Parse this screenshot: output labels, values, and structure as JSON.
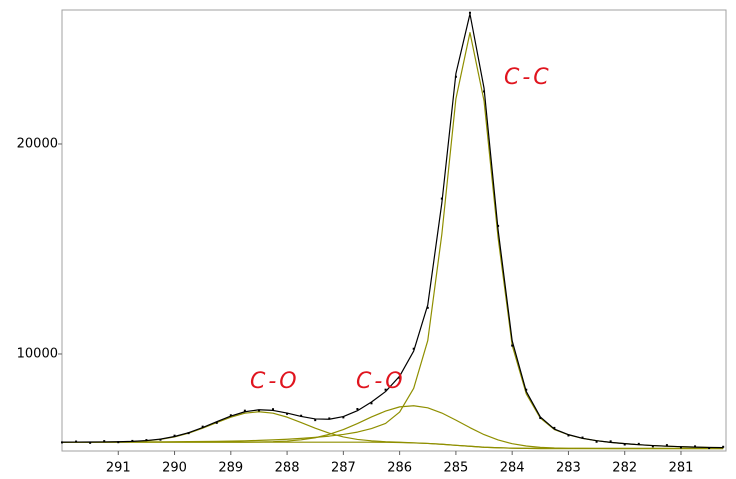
{
  "chart_data": {
    "type": "line",
    "x": [
      292.0,
      291.75,
      291.5,
      291.25,
      291.0,
      290.75,
      290.5,
      290.25,
      290.0,
      289.75,
      289.5,
      289.25,
      289.0,
      288.75,
      288.5,
      288.25,
      288.0,
      287.75,
      287.5,
      287.25,
      287.0,
      286.75,
      286.5,
      286.25,
      286.0,
      285.75,
      285.5,
      285.25,
      285.0,
      284.75,
      284.5,
      284.25,
      284.0,
      283.75,
      283.5,
      283.25,
      283.0,
      282.75,
      282.5,
      282.25,
      282.0,
      281.75,
      281.5,
      281.25,
      281.0,
      280.75,
      280.5,
      280.25
    ],
    "series": [
      {
        "style": "line",
        "color": "#8f8f00",
        "values": [
          5800,
          5800,
          5800,
          5800,
          5800,
          5800,
          5800,
          5800,
          5800,
          5800,
          5800,
          5800,
          5800,
          5800,
          5800,
          5800,
          5800,
          5800,
          5800,
          5800,
          5800,
          5800,
          5800,
          5793,
          5785,
          5765,
          5740,
          5700,
          5650,
          5605,
          5560,
          5535,
          5515,
          5505,
          5500,
          5500,
          5500,
          5500,
          5500,
          5500,
          5500,
          5500,
          5500,
          5500,
          5500,
          5500,
          5500,
          5500
        ]
      },
      {
        "style": "line",
        "color": "#8f8f00",
        "values": [
          5800,
          5800,
          5801,
          5804,
          5811,
          5828,
          5864,
          5932,
          6049,
          6228,
          6464,
          6734,
          6993,
          7180,
          7250,
          7180,
          6993,
          6734,
          6464,
          6228,
          6049,
          5932,
          5864,
          5821,
          5796,
          5769,
          5741,
          5700,
          5650,
          5605,
          5560,
          5535,
          5515,
          5505,
          5500,
          5500,
          5500,
          5500,
          5500,
          5500,
          5500,
          5500,
          5500,
          5500,
          5500,
          5500,
          5500,
          5500
        ]
      },
      {
        "style": "line",
        "color": "#8f8f00",
        "values": [
          5800,
          5800,
          5800,
          5800,
          5800,
          5800,
          5800,
          5800,
          5800,
          5800,
          5800,
          5800,
          5801,
          5804,
          5809,
          5823,
          5853,
          5912,
          6012,
          6173,
          6400,
          6687,
          7000,
          7282,
          7481,
          7535,
          7436,
          7189,
          6850,
          6492,
          6160,
          5908,
          5727,
          5617,
          5553,
          5523,
          5509,
          5504,
          5501,
          5500,
          5500,
          5500,
          5500,
          5500,
          5500,
          5500,
          5500,
          5500
        ]
      },
      {
        "style": "line",
        "color": "#8f8f00",
        "values": [
          5804,
          5805,
          5806,
          5807,
          5809,
          5811,
          5814,
          5817,
          5821,
          5826,
          5832,
          5840,
          5850,
          5865,
          5885,
          5910,
          5940,
          5980,
          6030,
          6090,
          6170,
          6280,
          6450,
          6693,
          7235,
          8365,
          10640,
          15700,
          22150,
          25305,
          22060,
          15535,
          10415,
          8105,
          6950,
          6400,
          6150,
          5980,
          5870,
          5790,
          5730,
          5680,
          5640,
          5610,
          5585,
          5565,
          5550,
          5540
        ]
      },
      {
        "style": "line",
        "color": "#000000",
        "values": [
          5804,
          5805,
          5807,
          5811,
          5820,
          5839,
          5878,
          5949,
          6070,
          6254,
          6496,
          6774,
          7044,
          7249,
          7344,
          7313,
          7186,
          7026,
          6906,
          6891,
          7019,
          7299,
          7714,
          8210,
          8942,
          10139,
          12337,
          17189,
          23350,
          26192,
          22660,
          15908,
          10627,
          8217,
          7003,
          6423,
          6159,
          5984,
          5871,
          5790,
          5730,
          5680,
          5640,
          5610,
          5585,
          5565,
          5550,
          5540
        ]
      },
      {
        "style": "points",
        "color": "#000000",
        "values": [
          5790,
          5830,
          5770,
          5850,
          5800,
          5860,
          5900,
          5920,
          6110,
          6230,
          6540,
          6720,
          7080,
          7300,
          7310,
          7370,
          7150,
          7060,
          6850,
          6930,
          6980,
          7380,
          7650,
          8300,
          8850,
          10250,
          12200,
          17400,
          23200,
          26250,
          22500,
          16100,
          10400,
          8300,
          6950,
          6480,
          6120,
          6020,
          5820,
          5840,
          5690,
          5720,
          5600,
          5660,
          5550,
          5600,
          5520,
          5580
        ]
      }
    ],
    "xlim": [
      292.0,
      280.2
    ],
    "xticks": [
      291,
      290,
      289,
      288,
      287,
      286,
      285,
      284,
      283,
      282,
      281
    ],
    "ylim": [
      5380,
      26380
    ],
    "yticks": [
      10000,
      20000
    ],
    "grid": false,
    "annotations": [
      {
        "text": "C-C"
      },
      {
        "text": "C-O"
      },
      {
        "text": "C-O"
      }
    ]
  }
}
